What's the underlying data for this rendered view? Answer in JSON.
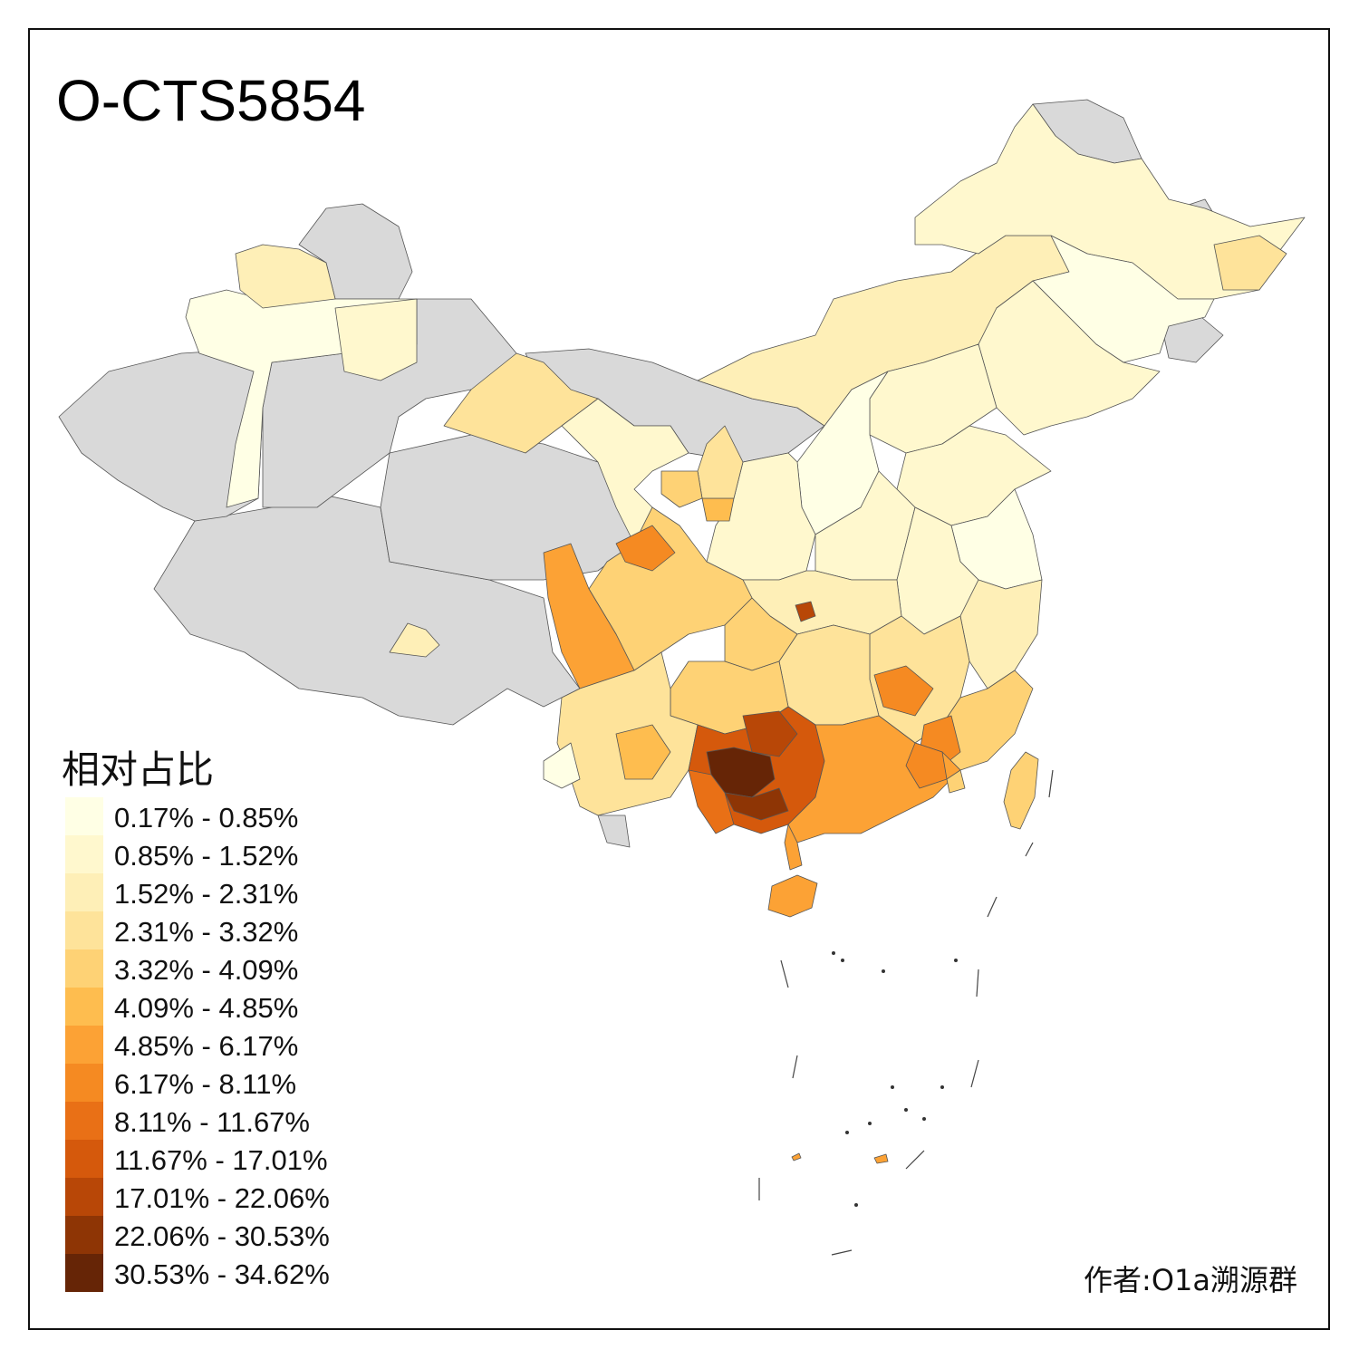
{
  "title": "O-CTS5854",
  "legend": {
    "title": "相对占比",
    "items": [
      {
        "label": "0.17% - 0.85%",
        "color": "#FFFFE5"
      },
      {
        "label": "0.85% - 1.52%",
        "color": "#FFF8CE"
      },
      {
        "label": "1.52% - 2.31%",
        "color": "#FEEFB7"
      },
      {
        "label": "2.31% - 3.32%",
        "color": "#FEE39A"
      },
      {
        "label": "3.32% - 4.09%",
        "color": "#FED275"
      },
      {
        "label": "4.09% - 4.85%",
        "color": "#FEBD4F"
      },
      {
        "label": "4.85% - 6.17%",
        "color": "#FCA235"
      },
      {
        "label": "6.17% - 8.11%",
        "color": "#F58A22"
      },
      {
        "label": "8.11% - 11.67%",
        "color": "#E97016"
      },
      {
        "label": "11.67% - 17.01%",
        "color": "#D5590C"
      },
      {
        "label": "17.01% - 22.06%",
        "color": "#B84707"
      },
      {
        "label": "22.06% - 30.53%",
        "color": "#8E3505"
      },
      {
        "label": "30.53% - 34.62%",
        "color": "#662506"
      }
    ]
  },
  "no_data_color": "#D9D9D9",
  "author": "作者:O1a溯源群"
}
